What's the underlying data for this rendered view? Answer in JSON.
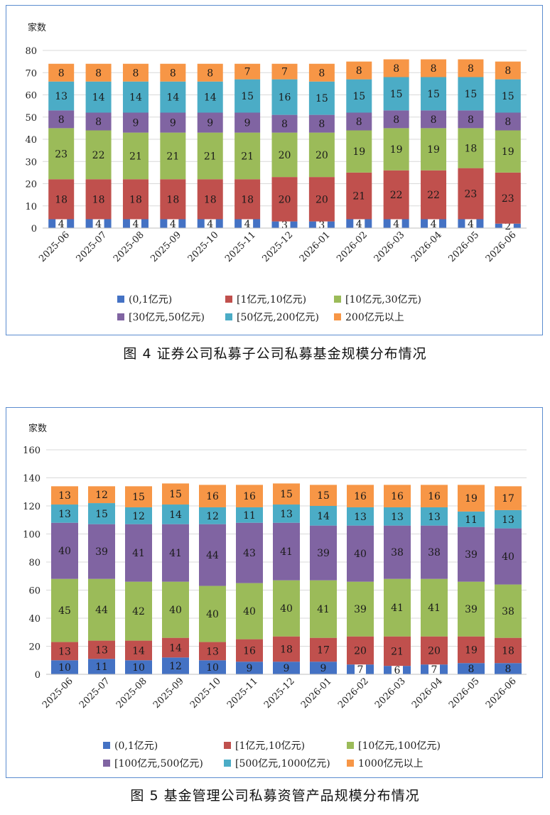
{
  "figure4": {
    "caption": "图 4  证券公司私募子公司私募基金规模分布情况",
    "chart_data": {
      "type": "bar",
      "stacked": true,
      "ylabel": "家数",
      "ylim": [
        0,
        80
      ],
      "yticks": [
        0,
        10,
        20,
        30,
        40,
        50,
        60,
        70,
        80
      ],
      "grid": true,
      "legend": "bottom",
      "categories": [
        "2025-06",
        "2025-07",
        "2025-08",
        "2025-09",
        "2025-10",
        "2025-11",
        "2025-12",
        "2026-01",
        "2026-02",
        "2026-03",
        "2026-04",
        "2026-05",
        "2026-06"
      ],
      "series": [
        {
          "name": "(0,1亿元)",
          "color": "#4472c4",
          "values": [
            4,
            4,
            4,
            4,
            4,
            4,
            3,
            3,
            4,
            4,
            4,
            4,
            2
          ]
        },
        {
          "name": "[1亿元,10亿元)",
          "color": "#c0504d",
          "values": [
            18,
            18,
            18,
            18,
            18,
            18,
            20,
            20,
            21,
            22,
            22,
            23,
            23
          ]
        },
        {
          "name": "[10亿元,30亿元)",
          "color": "#9bbb59",
          "values": [
            23,
            22,
            21,
            21,
            21,
            21,
            20,
            20,
            19,
            19,
            19,
            18,
            19
          ]
        },
        {
          "name": "[30亿元,50亿元)",
          "color": "#8064a2",
          "values": [
            8,
            8,
            9,
            9,
            9,
            9,
            8,
            8,
            8,
            8,
            8,
            8,
            8
          ]
        },
        {
          "name": "[50亿元,200亿元)",
          "color": "#4bacc6",
          "values": [
            13,
            14,
            14,
            14,
            14,
            15,
            16,
            15,
            15,
            15,
            15,
            15,
            15
          ]
        },
        {
          "name": "200亿元以上",
          "color": "#f79646",
          "values": [
            8,
            8,
            8,
            8,
            8,
            7,
            7,
            8,
            8,
            8,
            8,
            8,
            8
          ]
        }
      ]
    }
  },
  "figure5": {
    "caption": "图 5  基金管理公司私募资管产品规模分布情况",
    "chart_data": {
      "type": "bar",
      "stacked": true,
      "ylabel": "家数",
      "ylim": [
        0,
        160
      ],
      "yticks": [
        0,
        20,
        40,
        60,
        80,
        100,
        120,
        140,
        160
      ],
      "grid": true,
      "legend": "bottom",
      "categories": [
        "2025-06",
        "2025-07",
        "2025-08",
        "2025-09",
        "2025-10",
        "2025-11",
        "2025-12",
        "2026-01",
        "2026-02",
        "2026-03",
        "2026-04",
        "2026-05",
        "2026-06"
      ],
      "series": [
        {
          "name": "(0,1亿元)",
          "color": "#4472c4",
          "values": [
            10,
            11,
            10,
            12,
            10,
            9,
            9,
            9,
            7,
            6,
            7,
            8,
            8
          ]
        },
        {
          "name": "[1亿元,10亿元)",
          "color": "#c0504d",
          "values": [
            13,
            13,
            14,
            14,
            13,
            16,
            18,
            17,
            20,
            21,
            20,
            19,
            18
          ]
        },
        {
          "name": "[10亿元,100亿元)",
          "color": "#9bbb59",
          "values": [
            45,
            44,
            42,
            40,
            40,
            40,
            40,
            41,
            39,
            41,
            41,
            39,
            38
          ]
        },
        {
          "name": "[100亿元,500亿元)",
          "color": "#8064a2",
          "values": [
            40,
            39,
            41,
            41,
            44,
            43,
            41,
            39,
            40,
            38,
            38,
            39,
            40
          ]
        },
        {
          "name": "[500亿元,1000亿元)",
          "color": "#4bacc6",
          "values": [
            13,
            15,
            12,
            14,
            12,
            11,
            13,
            14,
            13,
            13,
            13,
            11,
            13
          ]
        },
        {
          "name": "1000亿元以上",
          "color": "#f79646",
          "values": [
            13,
            12,
            15,
            15,
            16,
            16,
            15,
            15,
            16,
            16,
            16,
            19,
            17
          ]
        }
      ]
    }
  }
}
